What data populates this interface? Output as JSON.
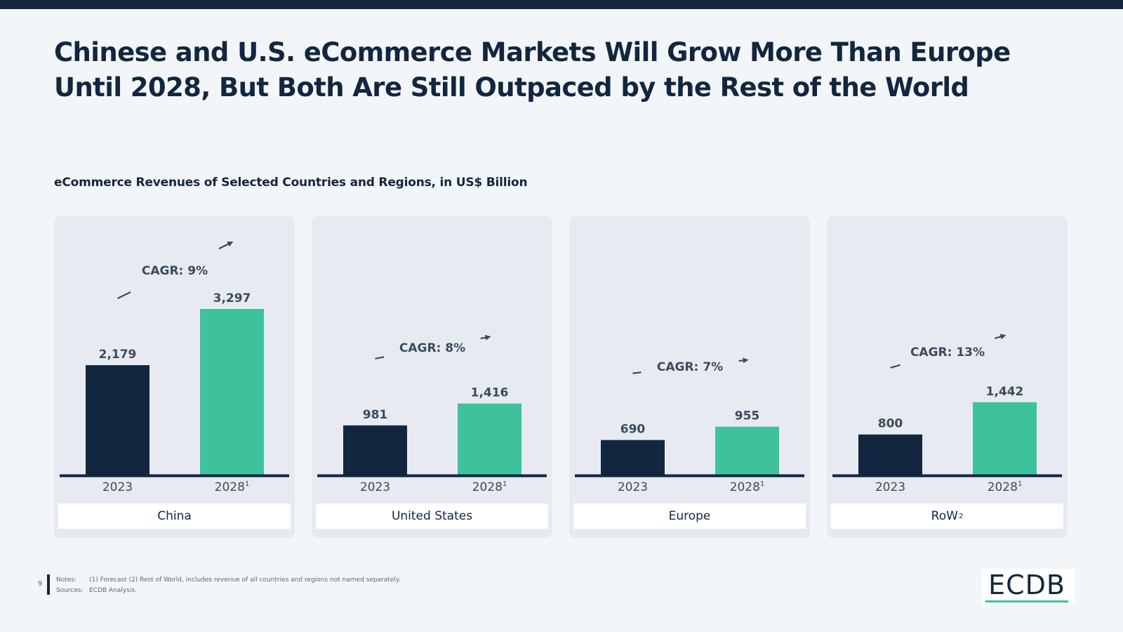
{
  "title": "Chinese and U.S. eCommerce Markets Will Grow More Than Europe Until 2028, But Both Are Still Outpaced by the Rest of the World",
  "subtitle": "eCommerce Revenues of Selected Countries and Regions, in US$ Billion",
  "colors": {
    "bar_2023": "#13263f",
    "bar_2028": "#3dc29c",
    "panel_bg": "#e7ebf1",
    "text": "#13263f"
  },
  "chart_data": {
    "type": "bar",
    "title": "eCommerce Revenues of Selected Countries and Regions, in US$ Billion",
    "categories": [
      "2023",
      "2028"
    ],
    "category_superscripts": [
      "",
      "1"
    ],
    "ylim": [
      0,
      3600
    ],
    "panels": [
      {
        "region": "China",
        "region_superscript": "",
        "values": [
          2179,
          3297
        ],
        "value_labels": [
          "2,179",
          "3,297"
        ],
        "cagr": "CAGR: 9%"
      },
      {
        "region": "United States",
        "region_superscript": "",
        "values": [
          981,
          1416
        ],
        "value_labels": [
          "981",
          "1,416"
        ],
        "cagr": "CAGR: 8%"
      },
      {
        "region": "Europe",
        "region_superscript": "",
        "values": [
          690,
          955
        ],
        "value_labels": [
          "690",
          "955"
        ],
        "cagr": "CAGR: 7%"
      },
      {
        "region": "RoW",
        "region_superscript": "2",
        "values": [
          800,
          1442
        ],
        "value_labels": [
          "800",
          "1,442"
        ],
        "cagr": "CAGR: 13%"
      }
    ]
  },
  "footer": {
    "page_number": "9",
    "notes_label": "Notes:",
    "notes_text": "(1) Forecast (2) Rest of World, includes revenue of all countries and regions not named separately.",
    "sources_label": "Sources:",
    "sources_text": "ECDB Analysis."
  },
  "logo": {
    "text": "ECDB"
  }
}
